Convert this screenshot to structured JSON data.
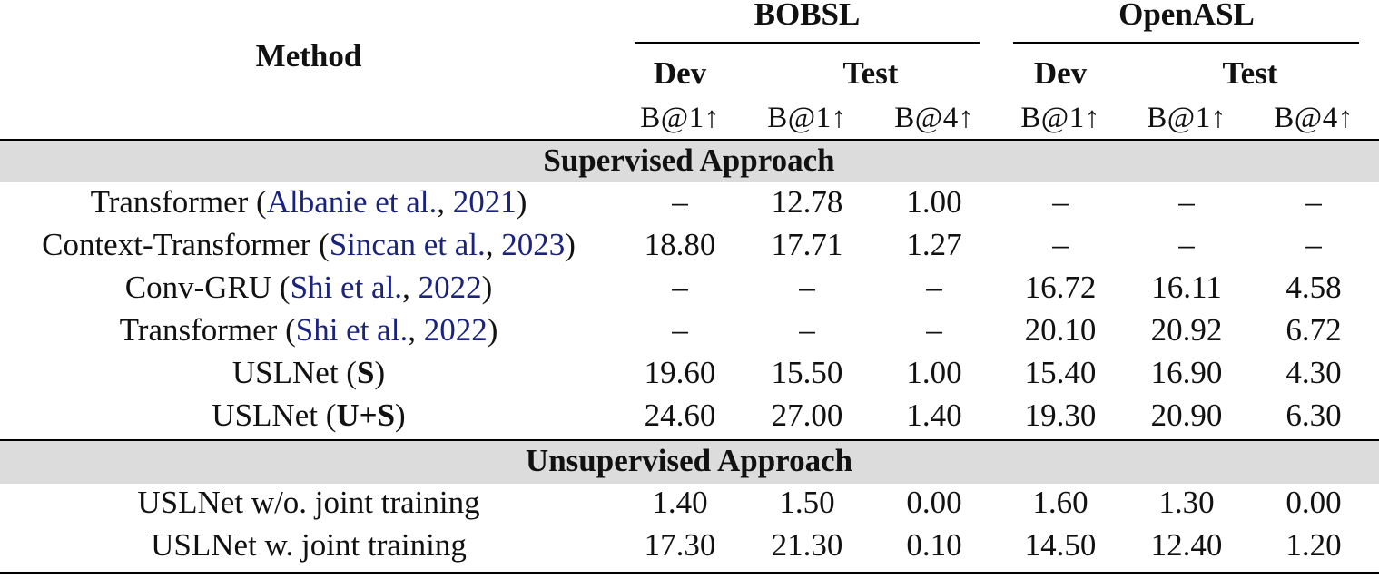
{
  "header": {
    "method": "Method",
    "groups": [
      "BOBSL",
      "OpenASL"
    ],
    "splits": [
      "Dev",
      "Test",
      "Dev",
      "Test"
    ],
    "metrics": [
      "B@1↑",
      "B@1↑",
      "B@4↑",
      "B@1↑",
      "B@1↑",
      "B@4↑"
    ]
  },
  "sections": [
    {
      "title": "Supervised Approach",
      "rows": [
        {
          "name": "Transformer (",
          "cite_a": "Albanie et al.",
          "sep": ", ",
          "cite_b": "2021",
          "close": ")",
          "values": [
            "–",
            "12.78",
            "1.00",
            "–",
            "–",
            "–"
          ]
        },
        {
          "name": "Context-Transformer (",
          "cite_a": "Sincan et al.",
          "sep": ", ",
          "cite_b": "2023",
          "close": ")",
          "values": [
            "18.80",
            "17.71",
            "1.27",
            "–",
            "–",
            "–"
          ]
        },
        {
          "name": "Conv-GRU (",
          "cite_a": "Shi et al.",
          "sep": ", ",
          "cite_b": "2022",
          "close": ")",
          "values": [
            "–",
            "–",
            "–",
            "16.72",
            "16.11",
            "4.58"
          ]
        },
        {
          "name": "Transformer (",
          "cite_a": "Shi et al.",
          "sep": ", ",
          "cite_b": "2022",
          "close": ")",
          "values": [
            "–",
            "–",
            "–",
            "20.10",
            "20.92",
            "6.72"
          ]
        },
        {
          "name": "USLNet (",
          "bold": "S",
          "close": ")",
          "values": [
            "19.60",
            "15.50",
            "1.00",
            "15.40",
            "16.90",
            "4.30"
          ]
        },
        {
          "name": "USLNet (",
          "bold": "U+S",
          "close": ")",
          "values": [
            "24.60",
            "27.00",
            "1.40",
            "19.30",
            "20.90",
            "6.30"
          ]
        }
      ]
    },
    {
      "title": "Unsupervised Approach",
      "rows": [
        {
          "name": "USLNet w/o. joint training",
          "values": [
            "1.40",
            "1.50",
            "0.00",
            "1.60",
            "1.30",
            "0.00"
          ]
        },
        {
          "name": "USLNet w. joint training",
          "values": [
            "17.30",
            "21.30",
            "0.10",
            "14.50",
            "12.40",
            "1.20"
          ]
        }
      ]
    }
  ]
}
